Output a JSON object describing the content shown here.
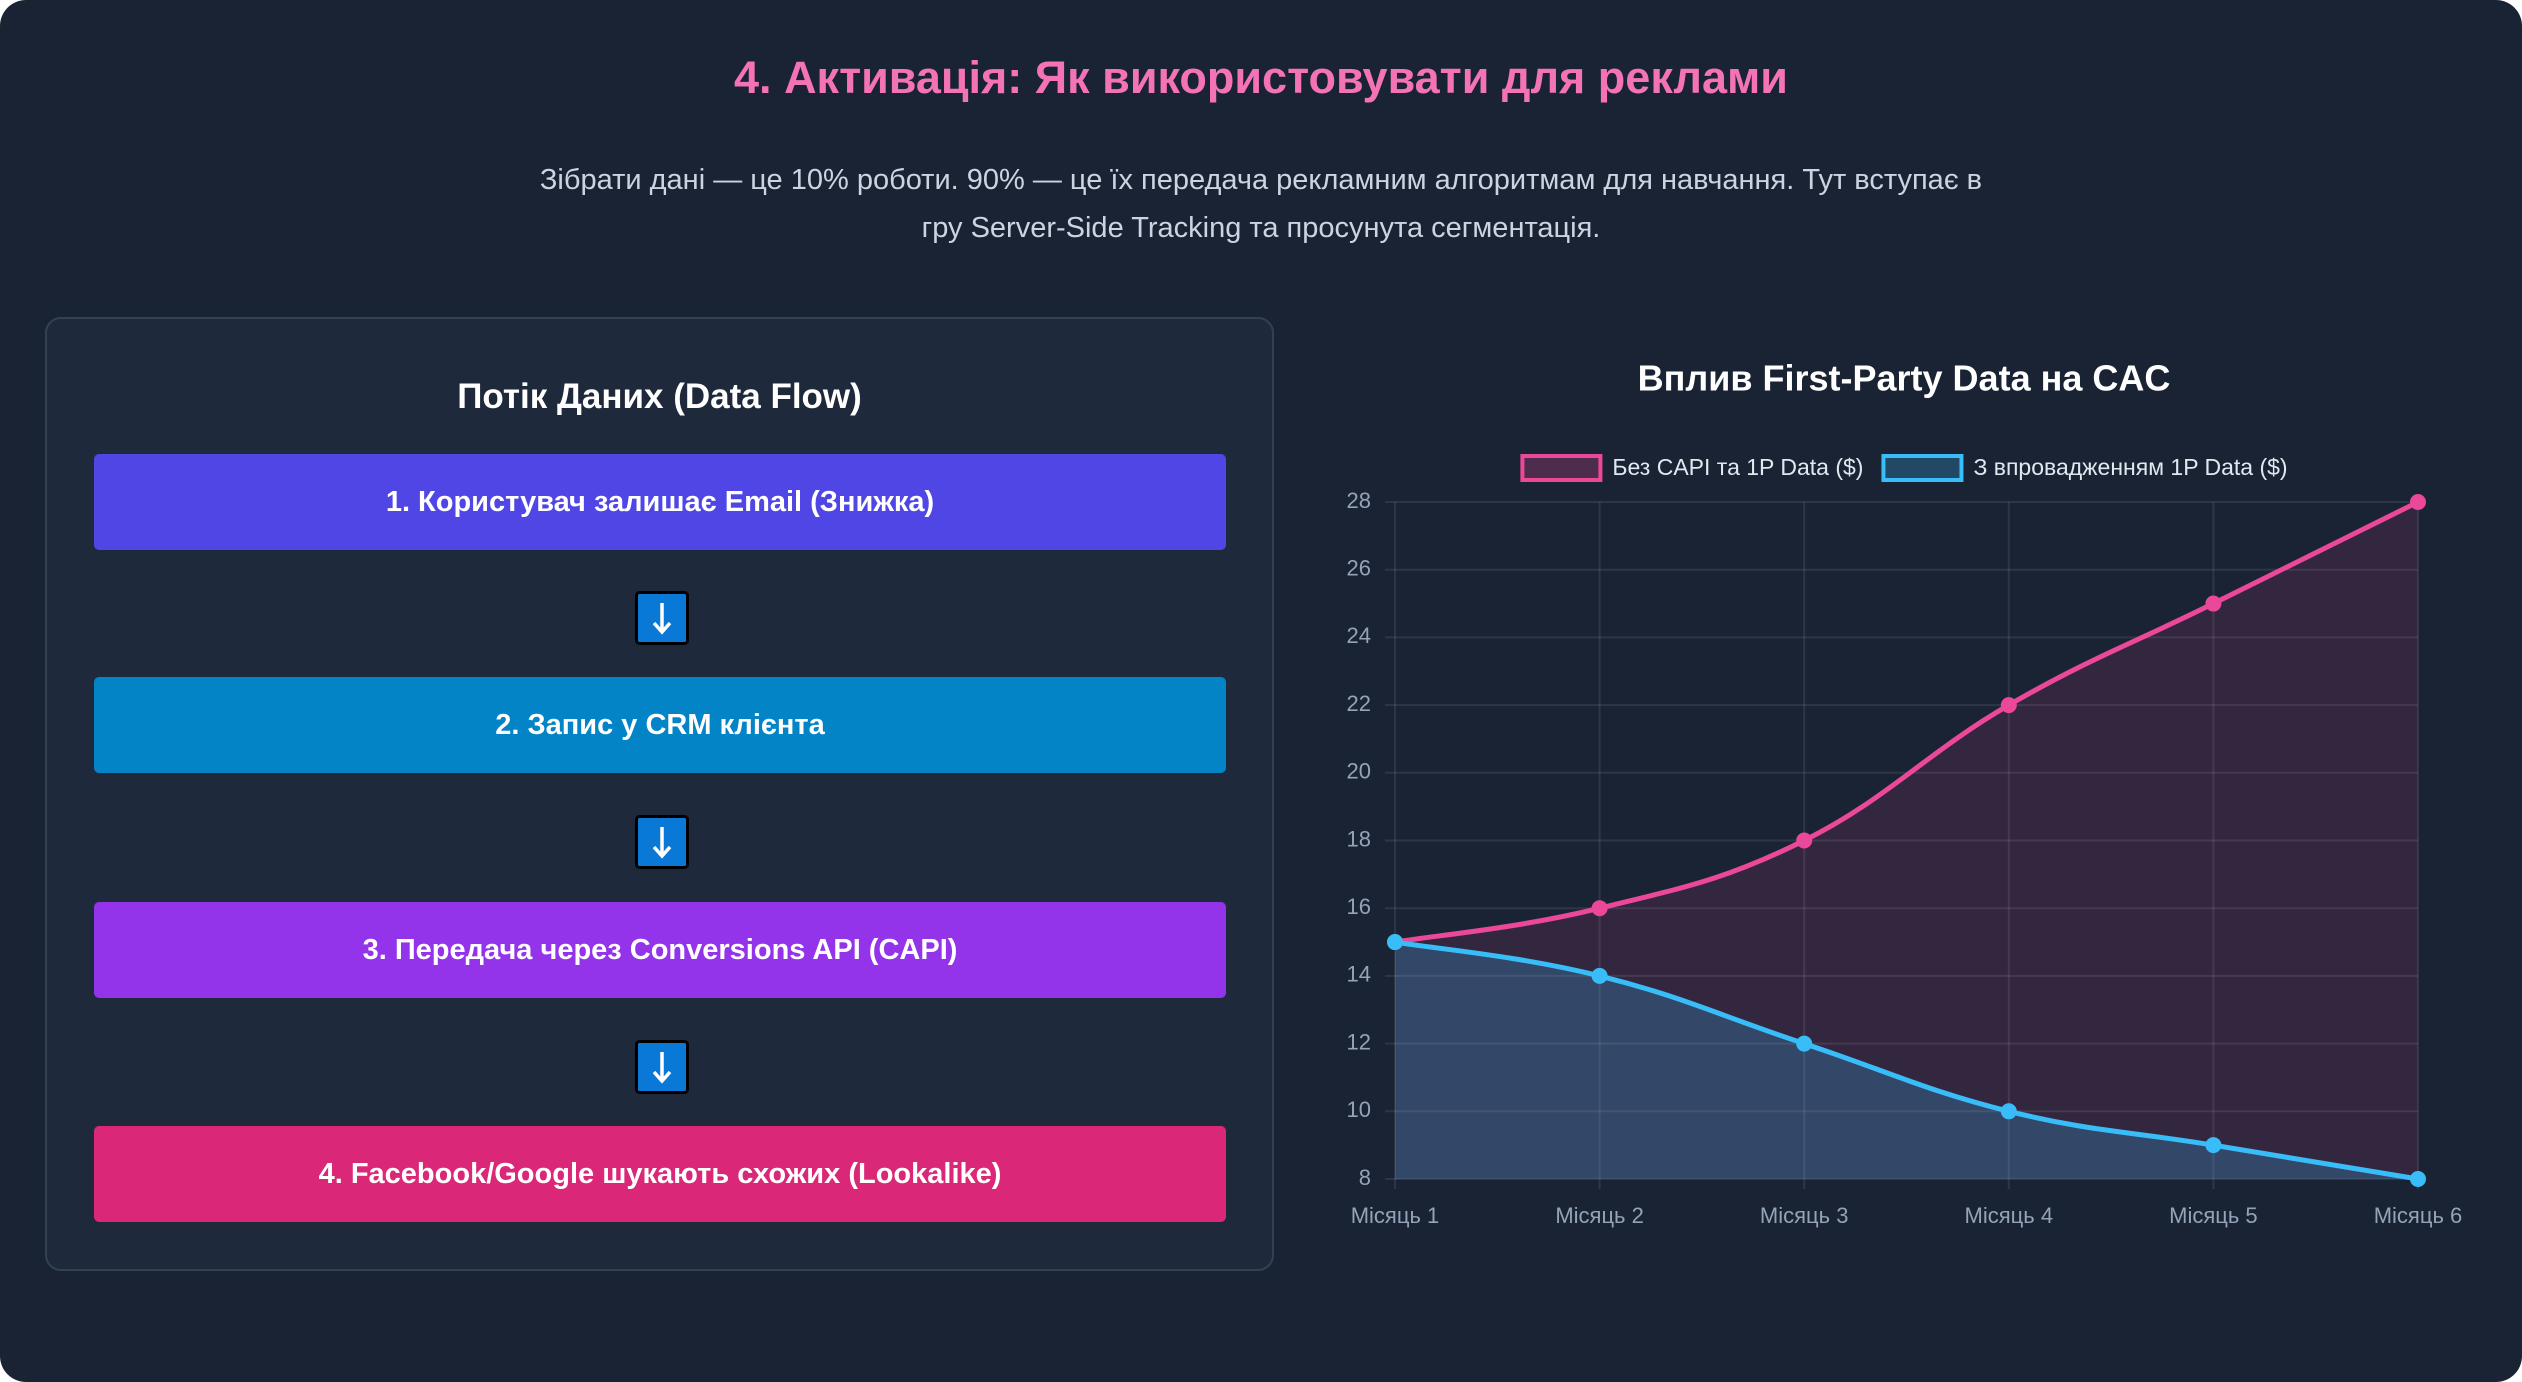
{
  "header": {
    "title": "4. Активація: Як використовувати для реклами",
    "subtitle": "Зібрати дані — це 10% роботи. 90% — це їх передача рекламним алгоритмам для навчання. Тут вступає в гру Server-Side Tracking та просунута сегментація."
  },
  "flow": {
    "title": "Потік Даних (Data Flow)",
    "steps": [
      {
        "text": "1. Користувач залишає Email (Знижка)",
        "color": "#4f46e5"
      },
      {
        "text": "2. Запис у CRM клієнта",
        "color": "#0284c7"
      },
      {
        "text": "3. Передача через Conversions API (CAPI)",
        "color": "#9333ea"
      },
      {
        "text": "4. Facebook/Google шукають схожих (Lookalike)",
        "color": "#db2777"
      }
    ]
  },
  "chart_data": {
    "type": "line",
    "title": "Вплив First-Party Data на CAC",
    "categories": [
      "Місяць 1",
      "Місяць 2",
      "Місяць 3",
      "Місяць 4",
      "Місяць 5",
      "Місяць 6"
    ],
    "series": [
      {
        "name": "Без CAPI та 1P Data ($)",
        "color": "#ec4899",
        "values": [
          15,
          16,
          18,
          22,
          25,
          28
        ]
      },
      {
        "name": "З впровадженням 1P Data ($)",
        "color": "#38bdf8",
        "values": [
          15,
          14,
          12,
          10,
          9,
          8
        ]
      }
    ],
    "ylim": [
      8,
      28
    ],
    "yticks": [
      8,
      10,
      12,
      14,
      16,
      18,
      20,
      22,
      24,
      26,
      28
    ],
    "grid": true,
    "legend": "top",
    "fill": true,
    "smooth": true
  }
}
